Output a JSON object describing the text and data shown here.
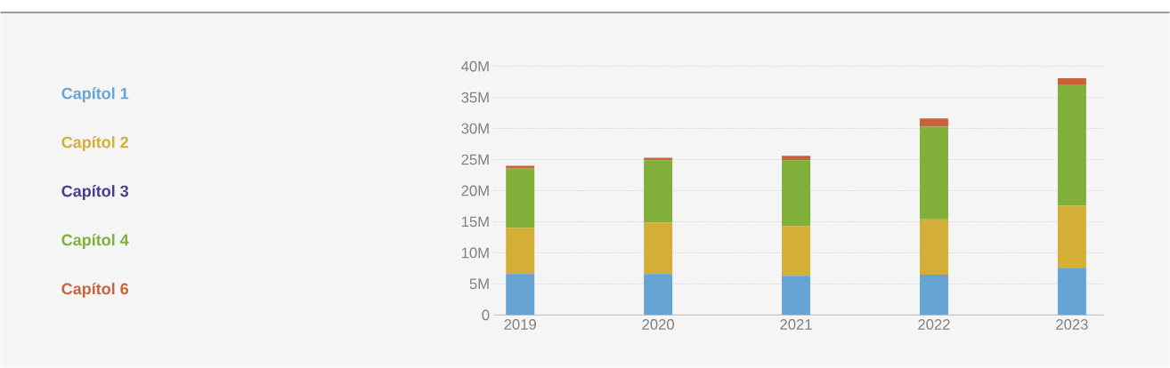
{
  "chart_data": {
    "type": "bar",
    "stacked": true,
    "categories": [
      "2019",
      "2020",
      "2021",
      "2022",
      "2023"
    ],
    "series": [
      {
        "name": "Capítol 1",
        "color": "#67a4d6",
        "values": [
          6.6,
          6.6,
          6.3,
          6.5,
          7.6
        ]
      },
      {
        "name": "Capítol 2",
        "color": "#d4af37",
        "values": [
          7.4,
          8.3,
          8.0,
          8.9,
          10.0
        ]
      },
      {
        "name": "Capítol 3",
        "color": "#433e91",
        "values": [
          0,
          0,
          0,
          0,
          0
        ]
      },
      {
        "name": "Capítol 4",
        "color": "#80b03a",
        "values": [
          9.6,
          10.0,
          10.6,
          14.9,
          19.5
        ]
      },
      {
        "name": "Capítol 6",
        "color": "#c9623a",
        "values": [
          0.4,
          0.4,
          0.7,
          1.3,
          1.0
        ]
      }
    ],
    "ylim": [
      0,
      40
    ],
    "yticks": [
      0,
      {
        "value": 5,
        "label": "5M"
      },
      {
        "value": 10,
        "label": "10M"
      },
      {
        "value": 15,
        "label": "15M"
      },
      {
        "value": 20,
        "label": "20M"
      },
      {
        "value": 25,
        "label": "25M"
      },
      {
        "value": 30,
        "label": "30M"
      },
      {
        "value": 35,
        "label": "35M"
      },
      {
        "value": 40,
        "label": "40M"
      }
    ],
    "grid": "y",
    "legend": "left"
  }
}
